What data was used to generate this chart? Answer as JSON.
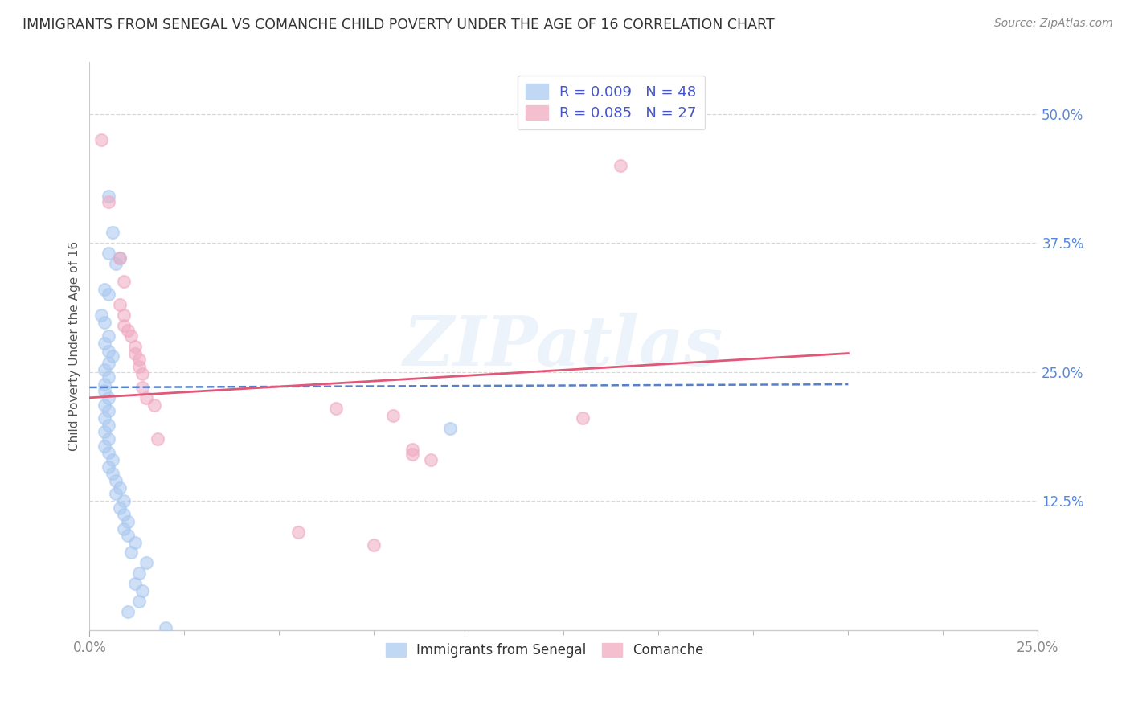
{
  "title": "IMMIGRANTS FROM SENEGAL VS COMANCHE CHILD POVERTY UNDER THE AGE OF 16 CORRELATION CHART",
  "source": "Source: ZipAtlas.com",
  "ylabel": "Child Poverty Under the Age of 16",
  "xlim": [
    0.0,
    0.25
  ],
  "ylim": [
    0.0,
    0.55
  ],
  "xticks": [
    0.0,
    0.25
  ],
  "xticklabels": [
    "0.0%",
    "25.0%"
  ],
  "yticks": [
    0.0,
    0.125,
    0.25,
    0.375,
    0.5
  ],
  "yticklabels": [
    "",
    "12.5%",
    "25.0%",
    "37.5%",
    "50.0%"
  ],
  "blue_scatter": [
    [
      0.005,
      0.42
    ],
    [
      0.006,
      0.385
    ],
    [
      0.005,
      0.365
    ],
    [
      0.008,
      0.36
    ],
    [
      0.007,
      0.355
    ],
    [
      0.004,
      0.33
    ],
    [
      0.005,
      0.325
    ],
    [
      0.003,
      0.305
    ],
    [
      0.004,
      0.298
    ],
    [
      0.005,
      0.285
    ],
    [
      0.004,
      0.278
    ],
    [
      0.005,
      0.27
    ],
    [
      0.006,
      0.265
    ],
    [
      0.005,
      0.258
    ],
    [
      0.004,
      0.252
    ],
    [
      0.005,
      0.245
    ],
    [
      0.004,
      0.238
    ],
    [
      0.004,
      0.232
    ],
    [
      0.005,
      0.225
    ],
    [
      0.004,
      0.218
    ],
    [
      0.005,
      0.212
    ],
    [
      0.004,
      0.205
    ],
    [
      0.005,
      0.198
    ],
    [
      0.004,
      0.192
    ],
    [
      0.005,
      0.185
    ],
    [
      0.004,
      0.178
    ],
    [
      0.005,
      0.172
    ],
    [
      0.006,
      0.165
    ],
    [
      0.005,
      0.158
    ],
    [
      0.006,
      0.152
    ],
    [
      0.007,
      0.145
    ],
    [
      0.008,
      0.138
    ],
    [
      0.007,
      0.132
    ],
    [
      0.009,
      0.125
    ],
    [
      0.008,
      0.118
    ],
    [
      0.009,
      0.112
    ],
    [
      0.01,
      0.105
    ],
    [
      0.009,
      0.098
    ],
    [
      0.01,
      0.092
    ],
    [
      0.012,
      0.085
    ],
    [
      0.011,
      0.075
    ],
    [
      0.015,
      0.065
    ],
    [
      0.013,
      0.055
    ],
    [
      0.012,
      0.045
    ],
    [
      0.014,
      0.038
    ],
    [
      0.013,
      0.028
    ],
    [
      0.01,
      0.018
    ],
    [
      0.02,
      0.002
    ],
    [
      0.095,
      0.195
    ]
  ],
  "pink_scatter": [
    [
      0.003,
      0.475
    ],
    [
      0.005,
      0.415
    ],
    [
      0.008,
      0.36
    ],
    [
      0.009,
      0.338
    ],
    [
      0.008,
      0.315
    ],
    [
      0.009,
      0.305
    ],
    [
      0.009,
      0.295
    ],
    [
      0.01,
      0.29
    ],
    [
      0.011,
      0.285
    ],
    [
      0.012,
      0.275
    ],
    [
      0.012,
      0.268
    ],
    [
      0.013,
      0.262
    ],
    [
      0.013,
      0.255
    ],
    [
      0.014,
      0.248
    ],
    [
      0.014,
      0.235
    ],
    [
      0.015,
      0.225
    ],
    [
      0.017,
      0.218
    ],
    [
      0.018,
      0.185
    ],
    [
      0.065,
      0.215
    ],
    [
      0.08,
      0.208
    ],
    [
      0.085,
      0.175
    ],
    [
      0.13,
      0.205
    ],
    [
      0.085,
      0.17
    ],
    [
      0.09,
      0.165
    ],
    [
      0.055,
      0.095
    ],
    [
      0.075,
      0.082
    ],
    [
      0.14,
      0.45
    ]
  ],
  "blue_line_x": [
    0.0,
    0.2
  ],
  "blue_line_y": [
    0.235,
    0.238
  ],
  "pink_line_x": [
    0.0,
    0.2
  ],
  "pink_line_y": [
    0.225,
    0.268
  ],
  "scatter_blue_color": "#a8c8f0",
  "scatter_pink_color": "#f0a8c0",
  "line_blue_color": "#5580cc",
  "line_pink_color": "#e05878",
  "watermark": "ZIPatlas",
  "background_color": "#ffffff",
  "grid_color": "#d8d8d8",
  "ytick_color": "#5588dd",
  "xtick_color": "#888888",
  "title_color": "#333333",
  "source_color": "#888888",
  "ylabel_color": "#555555"
}
